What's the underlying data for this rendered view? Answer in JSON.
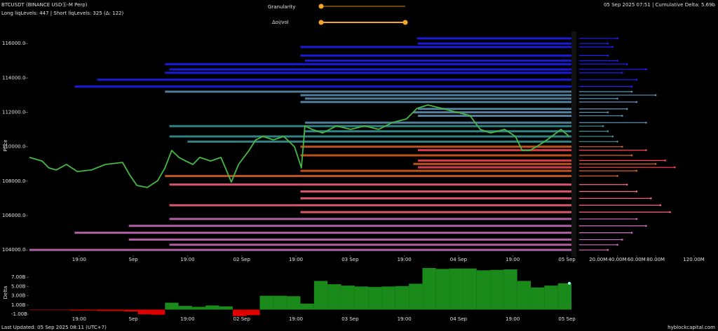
{
  "header": {
    "symbol": "BTCUSDT (BINANCE USDⓈ-M Perp)",
    "levels": "Long liqLevels: 447 | Short liqLevels: 325 (Δ: 122)",
    "status": "05 Sep 2025 07:51 | Cumulative Delta: 5.69b"
  },
  "controls": {
    "granularity": "Granularity",
    "oi_vol": "Δoi/vol"
  },
  "footer": {
    "updated": "Last Updated: 05 Sep 2025 08:11 (UTC+7)",
    "site": "hyblockcapital.com"
  },
  "chart_data": [
    {
      "type": "line",
      "ylabel": "Price",
      "color": "#45b845",
      "x": [
        0,
        2.8,
        4.3,
        5.9,
        8.2,
        10.6,
        13.7,
        16.8,
        20.6,
        22.2,
        23.8,
        26.1,
        28.4,
        30,
        31.5,
        33.1,
        34.6,
        36.2,
        37.7,
        40.1,
        42.4,
        44.7,
        46.3,
        48.6,
        50.1,
        51.7,
        54,
        56.3,
        58.7,
        60.2,
        61,
        62.6,
        64.9,
        68,
        71.1,
        74.2,
        77.3,
        80.4,
        83.5,
        85.8,
        88.2,
        91.3,
        94.4,
        97.5,
        99.8,
        102.1,
        105.2,
        107.6,
        109.1,
        110.7,
        112.2,
        114.6,
        117.7,
        119.5
      ],
      "values": [
        109380,
        109170,
        108770,
        108650,
        108970,
        108560,
        108650,
        108970,
        109090,
        108360,
        107750,
        107630,
        108030,
        108770,
        109780,
        109380,
        109170,
        108970,
        109380,
        109170,
        109380,
        107950,
        108970,
        109780,
        110400,
        110600,
        110400,
        110600,
        109990,
        108770,
        111210,
        111010,
        110800,
        111210,
        111010,
        111210,
        111010,
        111410,
        111620,
        112230,
        112430,
        112230,
        112020,
        111820,
        111010,
        110800,
        111010,
        110600,
        109780,
        109780,
        109990,
        110400,
        111010,
        110600
      ],
      "xlim": [
        0,
        120
      ],
      "ylim": [
        103600,
        116700
      ],
      "yticks": [
        {
          "value": 104000,
          "label": "104000.0"
        },
        {
          "value": 106000,
          "label": "106000.0"
        },
        {
          "value": 108000,
          "label": "108000.0"
        },
        {
          "value": 110000,
          "label": "110000.0"
        },
        {
          "value": 112000,
          "label": "112000.0"
        },
        {
          "value": 114000,
          "label": "114000.0"
        },
        {
          "value": 116000,
          "label": "116000.0"
        }
      ],
      "xticks": [
        {
          "value": 11,
          "label": "19:00"
        },
        {
          "value": 23,
          "label": "Sep"
        },
        {
          "value": 35,
          "label": "19:00"
        },
        {
          "value": 47,
          "label": "02 Sep"
        },
        {
          "value": 59,
          "label": "19:00"
        },
        {
          "value": 71,
          "label": "03 Sep"
        },
        {
          "value": 83,
          "label": "19:00"
        },
        {
          "value": 95,
          "label": "04 Sep"
        },
        {
          "value": 107,
          "label": "19:00"
        },
        {
          "value": 119,
          "label": "05 Sep"
        }
      ],
      "vlim": [
        0,
        135
      ],
      "vticks": [
        {
          "value": 20,
          "label": "20.00M"
        },
        {
          "value": 40,
          "label": "40.00M"
        },
        {
          "value": 60,
          "label": "60.00M"
        },
        {
          "value": 80,
          "label": "80.00M"
        },
        {
          "value": 120,
          "label": "120.00M"
        }
      ],
      "levels": [
        {
          "color": "#1f1fff",
          "prices": [
            116300,
            115800,
            115300,
            114800,
            114300,
            113900,
            113500,
            116000,
            115000,
            114500
          ],
          "starts": [
            85.8,
            60,
            60,
            30,
            30,
            15,
            10,
            86,
            61,
            31
          ],
          "volumes": [
            40,
            35,
            30,
            50,
            45,
            60,
            55,
            30,
            40,
            70
          ]
        },
        {
          "color": "#5f93b5",
          "prices": [
            113000,
            112600,
            112200,
            111800,
            111400,
            113200,
            112800,
            112000
          ],
          "starts": [
            60,
            60,
            86,
            86,
            61,
            30,
            61,
            85
          ],
          "volumes": [
            80,
            60,
            50,
            45,
            70,
            55,
            40,
            30
          ]
        },
        {
          "color": "#3a9a9a",
          "prices": [
            111200,
            110900,
            110600,
            110300
          ],
          "starts": [
            31,
            61,
            31,
            35
          ],
          "volumes": [
            25,
            30,
            35,
            40
          ]
        },
        {
          "color": "#e0601f",
          "prices": [
            110000,
            109500,
            109000,
            108600,
            108300
          ],
          "starts": [
            60,
            60,
            85,
            60,
            30
          ],
          "volumes": [
            45,
            55,
            80,
            60,
            40
          ]
        },
        {
          "color": "#ff4455",
          "prices": [
            109800,
            109200,
            108800
          ],
          "starts": [
            86,
            86,
            86
          ],
          "volumes": [
            70,
            90,
            100
          ]
        },
        {
          "color": "#ff6680",
          "prices": [
            107800,
            107400,
            107000,
            106600,
            106200
          ],
          "starts": [
            31,
            60,
            60,
            31,
            60
          ],
          "volumes": [
            50,
            60,
            75,
            85,
            95
          ]
        },
        {
          "color": "#d070c0",
          "prices": [
            105800,
            105400,
            105000,
            104600,
            104300,
            104000
          ],
          "starts": [
            31,
            22,
            10,
            22,
            31,
            0
          ],
          "volumes": [
            60,
            70,
            55,
            45,
            40,
            30
          ]
        }
      ]
    },
    {
      "type": "bar",
      "ylabel": "Delta",
      "positive_color": "#1a8a1a",
      "negative_color": "#e00000",
      "x": [
        0,
        3,
        6,
        9,
        12,
        15,
        18,
        21,
        24,
        27,
        30,
        33,
        36,
        39,
        42,
        45,
        48,
        51,
        54,
        57,
        60,
        63,
        66,
        69,
        72,
        75,
        78,
        81,
        84,
        87,
        90,
        93,
        96,
        99,
        102,
        105,
        108,
        111,
        114,
        117
      ],
      "values": [
        -0.1,
        -0.1,
        -0.1,
        -0.2,
        -0.2,
        -0.3,
        -0.3,
        -0.4,
        -1.0,
        -1.1,
        1.5,
        0.8,
        0.6,
        0.9,
        0.7,
        -1.4,
        -1.2,
        3.0,
        3.0,
        2.9,
        1.3,
        6.2,
        5.5,
        5.2,
        5.0,
        4.9,
        5.0,
        5.1,
        5.6,
        9.0,
        8.8,
        8.9,
        8.9,
        8.5,
        8.6,
        8.7,
        6.2,
        4.8,
        5.2,
        5.7
      ],
      "xlim": [
        0,
        120
      ],
      "ylim": [
        -1.9,
        9.0
      ],
      "yticks": [
        {
          "value": -1,
          "label": "-1.00B"
        },
        {
          "value": 1,
          "label": "1.00B"
        },
        {
          "value": 3,
          "label": "3.00B"
        },
        {
          "value": 5,
          "label": "5.00B"
        },
        {
          "value": 7,
          "label": "7.00B"
        }
      ],
      "xticks": [
        {
          "value": 11,
          "label": "19:00"
        },
        {
          "value": 23,
          "label": "Sep"
        },
        {
          "value": 35,
          "label": "19:00"
        },
        {
          "value": 47,
          "label": "02 Sep"
        },
        {
          "value": 59,
          "label": "19:00"
        },
        {
          "value": 71,
          "label": "03 Sep"
        },
        {
          "value": 83,
          "label": "19:00"
        },
        {
          "value": 95,
          "label": "04 Sep"
        },
        {
          "value": 107,
          "label": "19:00"
        },
        {
          "value": 119,
          "label": "05 Sep"
        }
      ]
    }
  ]
}
